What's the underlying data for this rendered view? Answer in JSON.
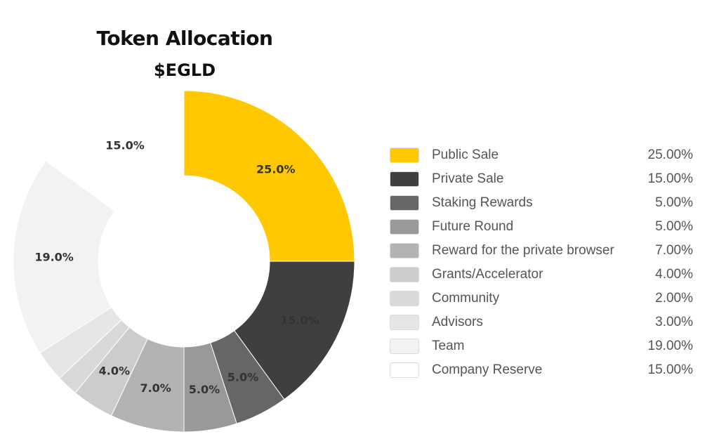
{
  "title": "Token Allocation",
  "subtitle": "$EGLD",
  "chart_data": {
    "type": "pie",
    "title": "Token Allocation",
    "subtitle": "$EGLD",
    "donut": true,
    "legend_position": "right",
    "series": [
      {
        "name": "Public Sale",
        "value": 25.0,
        "label": "25.0%",
        "legend_value": "25.00%",
        "color": "#FFC800"
      },
      {
        "name": "Private Sale",
        "value": 15.0,
        "label": "15.0%",
        "legend_value": "15.00%",
        "color": "#3F3F3F"
      },
      {
        "name": "Staking Rewards",
        "value": 5.0,
        "label": "5.0%",
        "legend_value": "5.00%",
        "color": "#666666"
      },
      {
        "name": "Future Round",
        "value": 5.0,
        "label": "5.0%",
        "legend_value": "5.00%",
        "color": "#999999"
      },
      {
        "name": "Reward for the private browser",
        "value": 7.0,
        "label": "7.0%",
        "legend_value": "7.00%",
        "color": "#B3B3B3"
      },
      {
        "name": "Grants/Accelerator",
        "value": 4.0,
        "label": "4.0%",
        "legend_value": "4.00%",
        "color": "#CCCCCC"
      },
      {
        "name": "Community",
        "value": 2.0,
        "label": "",
        "legend_value": "2.00%",
        "color": "#D9D9D9"
      },
      {
        "name": "Advisors",
        "value": 3.0,
        "label": "",
        "legend_value": "3.00%",
        "color": "#E6E6E6"
      },
      {
        "name": "Team",
        "value": 19.0,
        "label": "19.0%",
        "legend_value": "19.00%",
        "color": "#F2F2F2"
      },
      {
        "name": "Company Reserve",
        "value": 15.0,
        "label": "15.0%",
        "legend_value": "15.00%",
        "color": "#FFFFFF"
      }
    ]
  }
}
